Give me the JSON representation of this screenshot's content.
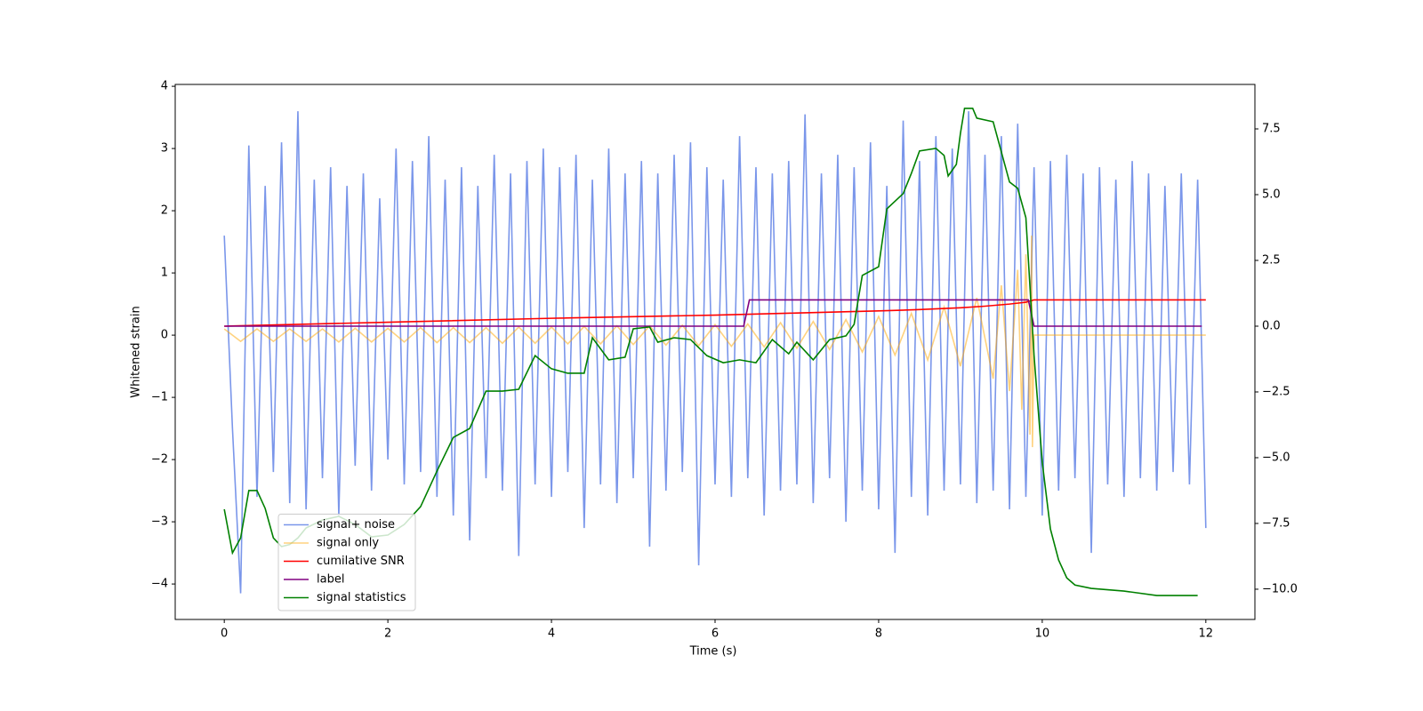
{
  "chart_data": {
    "type": "line",
    "xlabel": "Time (s)",
    "ylabel": "Whitened strain",
    "xlim": [
      -0.6,
      12.6
    ],
    "xticks": [
      0,
      2,
      4,
      6,
      8,
      10,
      12
    ],
    "ylim": [
      -4.57,
      4.03
    ],
    "yticks": [
      {
        "value": -4,
        "label": "−4"
      },
      {
        "value": -3,
        "label": "−3"
      },
      {
        "value": -2,
        "label": "−2"
      },
      {
        "value": -1,
        "label": "−1"
      },
      0,
      1,
      2,
      3,
      4
    ],
    "y2lim": [
      -11.15,
      9.19
    ],
    "y2ticks": [
      {
        "value": -10,
        "label": "−10.0"
      },
      {
        "value": -7.5,
        "label": "−7.5"
      },
      {
        "value": -5,
        "label": "−5.0"
      },
      {
        "value": -2.5,
        "label": "−2.5"
      },
      {
        "value": 0,
        "label": "0.0"
      },
      {
        "value": 2.5,
        "label": "2.5"
      },
      {
        "value": 5,
        "label": "5.0"
      },
      {
        "value": 7.5,
        "label": "7.5"
      }
    ],
    "legend": "lower left",
    "series": [
      {
        "name": "signal+ noise",
        "color": "#4169e1",
        "opacity": 0.7,
        "x": [
          0,
          0.1,
          0.2,
          0.3,
          0.4,
          0.5,
          0.6,
          0.7,
          0.8,
          0.9,
          1,
          1.1,
          1.2,
          1.3,
          1.4,
          1.5,
          1.6,
          1.7,
          1.8,
          1.9,
          2,
          2.1,
          2.2,
          2.3,
          2.4,
          2.5,
          2.6,
          2.7,
          2.8,
          2.9,
          3,
          3.1,
          3.2,
          3.3,
          3.4,
          3.5,
          3.6,
          3.7,
          3.8,
          3.9,
          4,
          4.1,
          4.2,
          4.3,
          4.4,
          4.5,
          4.6,
          4.7,
          4.8,
          4.9,
          5,
          5.1,
          5.2,
          5.3,
          5.4,
          5.5,
          5.6,
          5.7,
          5.8,
          5.9,
          6,
          6.1,
          6.2,
          6.3,
          6.4,
          6.5,
          6.6,
          6.7,
          6.8,
          6.9,
          7,
          7.1,
          7.2,
          7.3,
          7.4,
          7.5,
          7.6,
          7.7,
          7.8,
          7.9,
          8,
          8.1,
          8.2,
          8.3,
          8.4,
          8.5,
          8.6,
          8.7,
          8.8,
          8.9,
          9,
          9.1,
          9.2,
          9.3,
          9.4,
          9.5,
          9.6,
          9.7,
          9.8,
          9.9,
          10,
          10.1,
          10.2,
          10.3,
          10.4,
          10.5,
          10.6,
          10.7,
          10.8,
          10.9,
          11,
          11.1,
          11.2,
          11.3,
          11.4,
          11.5,
          11.6,
          11.7,
          11.8,
          11.9,
          12
        ],
        "values": [
          1.6,
          -1.5,
          -4.15,
          3.05,
          -2.6,
          2.4,
          -2.2,
          3.1,
          -2.7,
          3.6,
          -2.8,
          2.5,
          -2.3,
          2.7,
          -2.9,
          2.4,
          -2.1,
          2.6,
          -2.5,
          2.2,
          -2.0,
          3.0,
          -2.4,
          2.8,
          -2.2,
          3.2,
          -2.6,
          2.5,
          -2.9,
          2.7,
          -3.3,
          2.4,
          -2.3,
          2.9,
          -2.5,
          2.6,
          -3.55,
          2.8,
          -2.4,
          3.0,
          -2.6,
          2.7,
          -2.2,
          2.9,
          -3.1,
          2.5,
          -2.4,
          3.0,
          -2.7,
          2.6,
          -2.3,
          2.8,
          -3.4,
          2.6,
          -2.5,
          2.9,
          -2.2,
          3.1,
          -3.7,
          2.7,
          -2.4,
          2.5,
          -2.6,
          3.2,
          -2.3,
          2.7,
          -2.9,
          2.6,
          -2.5,
          2.8,
          -2.4,
          3.55,
          -2.7,
          2.6,
          -2.3,
          2.9,
          -3.0,
          2.7,
          -2.5,
          3.1,
          -2.8,
          2.4,
          -3.5,
          3.45,
          -2.6,
          2.8,
          -2.9,
          3.2,
          -2.5,
          3.0,
          -2.4,
          3.6,
          -2.7,
          2.9,
          -2.5,
          3.2,
          -2.8,
          3.4,
          -2.6,
          2.7,
          -2.9,
          2.8,
          -2.5,
          2.9,
          -2.3,
          2.6,
          -3.5,
          2.7,
          -2.4,
          2.5,
          -2.6,
          2.8,
          -2.3,
          2.6,
          -2.5,
          2.4,
          -2.2,
          2.6,
          -2.4,
          2.5,
          -3.1
        ]
      },
      {
        "name": "signal only",
        "color": "#ffa500",
        "opacity": 0.5,
        "x": [
          0,
          0.2,
          0.4,
          0.6,
          0.8,
          1,
          1.2,
          1.4,
          1.6,
          1.8,
          2,
          2.2,
          2.4,
          2.6,
          2.8,
          3,
          3.2,
          3.4,
          3.6,
          3.8,
          4,
          4.2,
          4.4,
          4.6,
          4.8,
          5,
          5.2,
          5.4,
          5.6,
          5.8,
          6,
          6.2,
          6.4,
          6.6,
          6.8,
          7,
          7.2,
          7.4,
          7.6,
          7.8,
          8,
          8.2,
          8.4,
          8.6,
          8.8,
          9,
          9.2,
          9.4,
          9.5,
          9.6,
          9.7,
          9.75,
          9.8,
          9.85,
          9.87,
          9.88,
          9.9,
          12
        ],
        "values": [
          0.1,
          -0.1,
          0.1,
          -0.1,
          0.1,
          -0.1,
          0.1,
          -0.11,
          0.11,
          -0.11,
          0.11,
          -0.11,
          0.12,
          -0.12,
          0.12,
          -0.12,
          0.12,
          -0.13,
          0.13,
          -0.13,
          0.13,
          -0.14,
          0.14,
          -0.14,
          0.15,
          -0.15,
          0.15,
          -0.16,
          0.16,
          -0.17,
          0.17,
          -0.18,
          0.18,
          -0.19,
          0.2,
          -0.21,
          0.22,
          -0.23,
          0.25,
          -0.27,
          0.3,
          -0.32,
          0.35,
          -0.4,
          0.45,
          -0.5,
          0.6,
          -0.7,
          0.8,
          -0.9,
          1.05,
          -1.2,
          1.3,
          -1.6,
          1.6,
          -1.8,
          0,
          0
        ]
      },
      {
        "name": "cumilative SNR",
        "color": "#ff0000",
        "axis": "y2",
        "x": [
          0,
          2,
          4,
          6,
          7,
          8,
          8.5,
          9,
          9.3,
          9.6,
          9.8,
          9.9,
          12
        ],
        "values": [
          0,
          0.15,
          0.3,
          0.42,
          0.5,
          0.58,
          0.63,
          0.7,
          0.76,
          0.84,
          0.91,
          1.0,
          1.0
        ]
      },
      {
        "name": "label",
        "color": "#800080",
        "axis": "y2",
        "x": [
          0,
          6.35,
          6.42,
          9.83,
          9.9,
          11.95
        ],
        "values": [
          0,
          0,
          1,
          1,
          0,
          0
        ]
      },
      {
        "name": "signal statistics",
        "color": "#008000",
        "axis": "y2",
        "x": [
          0,
          0.1,
          0.2,
          0.3,
          0.4,
          0.5,
          0.6,
          0.7,
          0.8,
          0.9,
          1,
          1.2,
          1.4,
          1.6,
          1.8,
          2,
          2.2,
          2.4,
          2.6,
          2.8,
          3,
          3.2,
          3.4,
          3.6,
          3.8,
          4,
          4.2,
          4.4,
          4.5,
          4.7,
          4.9,
          5,
          5.2,
          5.3,
          5.5,
          5.7,
          5.9,
          6.1,
          6.3,
          6.5,
          6.7,
          6.9,
          7,
          7.2,
          7.4,
          7.6,
          7.7,
          7.8,
          8,
          8.1,
          8.3,
          8.4,
          8.5,
          8.7,
          8.8,
          8.85,
          8.95,
          9,
          9.05,
          9.15,
          9.2,
          9.4,
          9.6,
          9.7,
          9.8,
          9.9,
          10,
          10.1,
          10.2,
          10.3,
          10.4,
          10.6,
          11,
          11.4,
          11.9
        ],
        "values": [
          -6.96,
          -8.62,
          -8.05,
          -6.25,
          -6.25,
          -6.93,
          -8.05,
          -8.38,
          -8.3,
          -8.05,
          -7.67,
          -7.37,
          -7.23,
          -7.54,
          -8.01,
          -7.94,
          -7.54,
          -6.86,
          -5.51,
          -4.23,
          -3.89,
          -2.47,
          -2.47,
          -2.4,
          -1.12,
          -1.62,
          -1.79,
          -1.79,
          -0.44,
          -1.28,
          -1.18,
          -0.1,
          -0.03,
          -0.61,
          -0.44,
          -0.51,
          -1.12,
          -1.39,
          -1.28,
          -1.39,
          -0.51,
          -1.05,
          -0.61,
          -1.28,
          -0.51,
          -0.37,
          0.07,
          1.93,
          2.26,
          4.46,
          5.04,
          5.81,
          6.66,
          6.76,
          6.49,
          5.71,
          6.15,
          7.33,
          8.28,
          8.28,
          7.91,
          7.77,
          5.48,
          5.24,
          4.12,
          -1.12,
          -5.17,
          -7.71,
          -8.89,
          -9.57,
          -9.84,
          -9.97,
          -10.07,
          -10.24,
          -10.24
        ]
      }
    ]
  }
}
